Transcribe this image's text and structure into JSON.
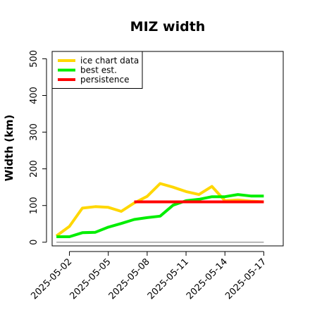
{
  "chart_data": {
    "type": "line",
    "title": "MIZ width",
    "xlabel": "",
    "ylabel": "Width (km)",
    "x": [
      "2025-05-01",
      "2025-05-02",
      "2025-05-03",
      "2025-05-04",
      "2025-05-05",
      "2025-05-06",
      "2025-05-07",
      "2025-05-08",
      "2025-05-09",
      "2025-05-10",
      "2025-05-11",
      "2025-05-12",
      "2025-05-13",
      "2025-05-14",
      "2025-05-15",
      "2025-05-16",
      "2025-05-17"
    ],
    "xticks": [
      "2025-05-02",
      "2025-05-05",
      "2025-05-08",
      "2025-05-11",
      "2025-05-14",
      "2025-05-17"
    ],
    "ylim": [
      -10,
      520
    ],
    "yticks": [
      0,
      100,
      200,
      300,
      400,
      500
    ],
    "xlim": [
      "2025-04-30T16:00",
      "2025-05-18T12:00"
    ],
    "grid": false,
    "legend_position": "top-left",
    "series": [
      {
        "name": "ice chart data",
        "color": "#FFD700",
        "x": [
          "2025-05-01",
          "2025-05-02",
          "2025-05-03",
          "2025-05-04",
          "2025-05-05",
          "2025-05-06",
          "2025-05-07",
          "2025-05-08",
          "2025-05-09",
          "2025-05-10",
          "2025-05-11",
          "2025-05-12",
          "2025-05-13",
          "2025-05-14",
          "2025-05-15",
          "2025-05-16",
          "2025-05-17"
        ],
        "values": [
          17,
          43,
          93,
          97,
          95,
          84,
          107,
          125,
          160,
          150,
          138,
          130,
          152,
          113,
          115,
          112,
          110
        ]
      },
      {
        "name": "best est.",
        "color": "#00EE00",
        "x": [
          "2025-05-01",
          "2025-05-02",
          "2025-05-03",
          "2025-05-04",
          "2025-05-05",
          "2025-05-06",
          "2025-05-07",
          "2025-05-08",
          "2025-05-09",
          "2025-05-10",
          "2025-05-11",
          "2025-05-12",
          "2025-05-13",
          "2025-05-14",
          "2025-05-15",
          "2025-05-16",
          "2025-05-17"
        ],
        "values": [
          15,
          15,
          26,
          27,
          41,
          51,
          62,
          67,
          71,
          101,
          113,
          117,
          124,
          124,
          130,
          126,
          126
        ]
      },
      {
        "name": "persistence",
        "color": "#FF0000",
        "x": [
          "2025-05-07",
          "2025-05-17"
        ],
        "values": [
          110,
          110
        ]
      },
      {
        "name": "",
        "color": "#808080",
        "x": [
          "2025-05-01",
          "2025-05-17"
        ],
        "values": [
          0,
          0
        ]
      }
    ]
  }
}
